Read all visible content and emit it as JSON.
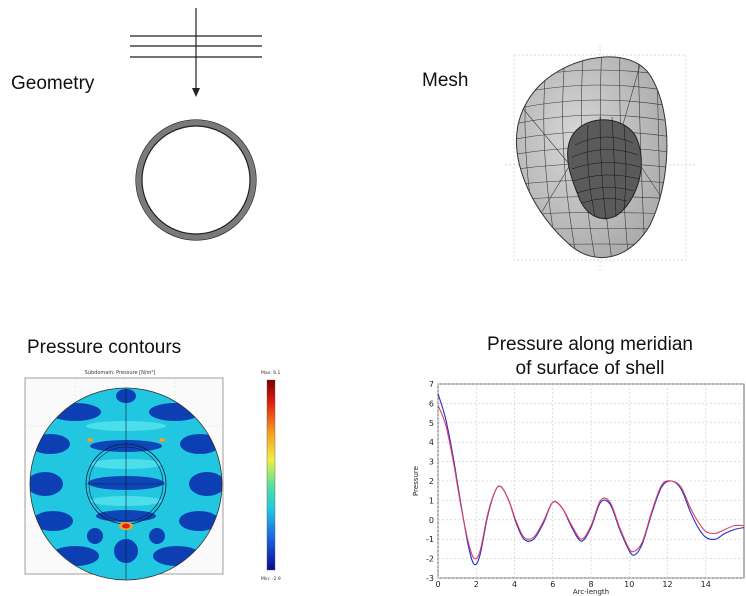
{
  "panels": {
    "geometry": {
      "label": "Geometry"
    },
    "mesh": {
      "label": "Mesh"
    },
    "contours": {
      "label": "Pressure contours",
      "plot_title": "Subdomain: Pressure [N/m²]",
      "colorbar_max": "Max: 6.1",
      "colorbar_min": "Min: -2.9",
      "colors": {
        "deep": "#0a2fb0",
        "mid": "#21c7e0",
        "hot": "#e02010"
      }
    },
    "meridian": {
      "title_line1": "Pressure along meridian",
      "title_line2": "of surface of shell"
    }
  },
  "chart_data": {
    "type": "line",
    "title": "Pressure along meridian of surface of shell",
    "xlabel": "Arc-length",
    "ylabel": "Pressure",
    "xlim": [
      0,
      16
    ],
    "ylim": [
      -3,
      7
    ],
    "x_ticks": [
      "0",
      "2",
      "4",
      "6",
      "8",
      "10",
      "12",
      "14"
    ],
    "y_ticks": [
      "-3",
      "-2",
      "-1",
      "0",
      "1",
      "2",
      "3",
      "4",
      "5",
      "6",
      "7"
    ],
    "grid": true,
    "series": [
      {
        "color": "#2030d0",
        "x": [
          0,
          0.4,
          0.8,
          1.2,
          1.6,
          1.9,
          2.2,
          2.6,
          3.0,
          3.3,
          3.7,
          4.1,
          4.5,
          5.0,
          5.5,
          6.0,
          6.5,
          7.0,
          7.5,
          8.0,
          8.5,
          9.0,
          9.5,
          10.0,
          10.3,
          10.7,
          11.2,
          11.7,
          12.2,
          12.7,
          13.2,
          13.6,
          14.0,
          14.5,
          15.0,
          15.5,
          16.0
        ],
        "y": [
          6.5,
          5.2,
          3.2,
          0.8,
          -1.4,
          -2.3,
          -1.8,
          0.2,
          1.5,
          1.7,
          1.0,
          -0.2,
          -1.0,
          -1.0,
          -0.2,
          0.9,
          0.6,
          -0.4,
          -1.1,
          -0.4,
          0.9,
          0.8,
          -0.5,
          -1.6,
          -1.8,
          -1.2,
          0.4,
          1.7,
          2.0,
          1.6,
          0.4,
          -0.4,
          -0.9,
          -1.0,
          -0.7,
          -0.5,
          -0.4
        ]
      },
      {
        "color": "#e04060",
        "x": [
          0,
          0.4,
          0.8,
          1.2,
          1.6,
          1.9,
          2.2,
          2.6,
          3.0,
          3.3,
          3.7,
          4.1,
          4.5,
          5.0,
          5.5,
          6.0,
          6.5,
          7.0,
          7.5,
          8.0,
          8.5,
          9.0,
          9.5,
          10.0,
          10.3,
          10.7,
          11.2,
          11.7,
          12.2,
          12.7,
          13.2,
          13.6,
          14.0,
          14.5,
          15.0,
          15.5,
          16.0
        ],
        "y": [
          5.9,
          4.9,
          3.0,
          0.7,
          -1.2,
          -2.0,
          -1.6,
          0.3,
          1.5,
          1.7,
          1.0,
          -0.1,
          -0.9,
          -0.9,
          -0.1,
          0.9,
          0.6,
          -0.3,
          -1.0,
          -0.3,
          1.0,
          0.9,
          -0.4,
          -1.5,
          -1.6,
          -1.1,
          0.5,
          1.8,
          2.0,
          1.7,
          0.6,
          -0.1,
          -0.6,
          -0.7,
          -0.5,
          -0.3,
          -0.3
        ]
      }
    ]
  }
}
